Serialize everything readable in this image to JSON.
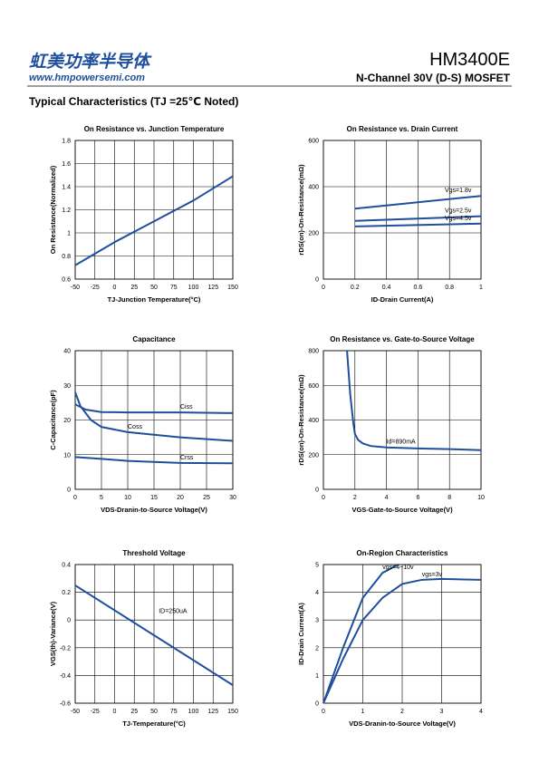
{
  "header": {
    "logo": "虹美功率半导体",
    "website": "www.hmpowersemi.com",
    "part_number": "HM3400E",
    "description": "N-Channel 30V (D-S) MOSFET"
  },
  "section_title": "Typical Characteristics (TJ =25℃ Noted)",
  "chart_data": [
    {
      "type": "line",
      "title": "On Resistance vs. Junction Temperature",
      "x_label": "TJ-Junction Temperature(°C)",
      "y_label": "On Resistance(Normalized)",
      "xlim": [
        -50,
        150
      ],
      "xticks": [
        -50,
        -25,
        0,
        25,
        50,
        75,
        100,
        125,
        150
      ],
      "ylim": [
        0.6,
        1.8
      ],
      "yticks": [
        0.6,
        0.8,
        1,
        1.2,
        1.4,
        1.6,
        1.8
      ],
      "grid": true,
      "series": [
        {
          "name": null,
          "color": "#1f4e9c",
          "x": [
            -50,
            0,
            50,
            100,
            150
          ],
          "values": [
            0.72,
            0.92,
            1.1,
            1.28,
            1.49
          ]
        }
      ]
    },
    {
      "type": "line",
      "title": "On Resistance vs. Drain Current",
      "x_label": "ID-Drain Current(A)",
      "y_label": "rDS(on)-On-Resistance(mΩ)",
      "xlim": [
        0,
        1
      ],
      "xticks": [
        0,
        0.2,
        0.4,
        0.6,
        0.8,
        1
      ],
      "ylim": [
        0,
        600
      ],
      "yticks": [
        0,
        200,
        400,
        600
      ],
      "grid": true,
      "series": [
        {
          "name": "Vgs=1.8v",
          "color": "#1f4e9c",
          "x": [
            0.2,
            1
          ],
          "values": [
            305,
            360
          ]
        },
        {
          "name": "Vgs=2.5v",
          "color": "#1f4e9c",
          "x": [
            0.2,
            1
          ],
          "values": [
            252,
            272
          ]
        },
        {
          "name": "Vgs=4.5v",
          "color": "#1f4e9c",
          "x": [
            0.2,
            1
          ],
          "values": [
            228,
            240
          ]
        }
      ]
    },
    {
      "type": "line",
      "title": "Capacitance",
      "x_label": "VDS-Dranin-to-Source Voltage(V)",
      "y_label": "C-Capacitance(pF)",
      "xlim": [
        0,
        30
      ],
      "xticks": [
        0,
        5,
        10,
        15,
        20,
        25,
        30
      ],
      "ylim": [
        0,
        40
      ],
      "yticks": [
        0,
        10,
        20,
        30,
        40
      ],
      "grid": true,
      "series": [
        {
          "name": "Ciss",
          "color": "#1f4e9c",
          "x": [
            0,
            2,
            5,
            10,
            20,
            30
          ],
          "values": [
            24.5,
            23,
            22.3,
            22.2,
            22.2,
            22
          ]
        },
        {
          "name": "Coss",
          "color": "#1f4e9c",
          "x": [
            0,
            1,
            3,
            5,
            10,
            20,
            30
          ],
          "values": [
            28,
            24,
            20,
            18,
            16.5,
            15,
            14
          ]
        },
        {
          "name": "Crss",
          "color": "#1f4e9c",
          "x": [
            0,
            5,
            10,
            20,
            30
          ],
          "values": [
            9.3,
            8.8,
            8.2,
            7.6,
            7.5
          ]
        }
      ]
    },
    {
      "type": "line",
      "title": "On Resistance vs. Gate-to-Source Voltage",
      "x_label": "VGS-Gate-to-Source Voltage(V)",
      "y_label": "rDS(on)-On-Resistance(mΩ)",
      "xlim": [
        0,
        10
      ],
      "xticks": [
        0,
        2,
        4,
        6,
        8,
        10
      ],
      "ylim": [
        0,
        800
      ],
      "yticks": [
        0,
        200,
        400,
        600,
        800
      ],
      "grid": true,
      "series": [
        {
          "name": "Id=890mA",
          "color": "#1f4e9c",
          "x": [
            1.5,
            1.7,
            1.9,
            2,
            2.2,
            2.5,
            3,
            4,
            6,
            8,
            10
          ],
          "values": [
            800,
            550,
            380,
            320,
            285,
            265,
            250,
            242,
            236,
            232,
            226
          ]
        }
      ]
    },
    {
      "type": "line",
      "title": "Threshold Voltage",
      "x_label": "TJ-Temperature(°C)",
      "y_label": "VGS(th)-Variance(V)",
      "annotation": "ID=250uA",
      "xlim": [
        -50,
        150
      ],
      "xticks": [
        -50,
        -25,
        0,
        25,
        50,
        75,
        100,
        125,
        150
      ],
      "ylim": [
        -0.6,
        0.4
      ],
      "yticks": [
        -0.6,
        -0.4,
        -0.2,
        0,
        0.2,
        0.4
      ],
      "grid": true,
      "series": [
        {
          "name": null,
          "color": "#1f4e9c",
          "x": [
            -50,
            150
          ],
          "values": [
            0.25,
            -0.47
          ]
        }
      ]
    },
    {
      "type": "line",
      "title": "On-Region Characteristics",
      "x_label": "VDS-Dranin-to-Source Voltage(V)",
      "y_label": "ID-Drain Current(A)",
      "xlim": [
        0,
        4
      ],
      "xticks": [
        0,
        1,
        2,
        3,
        4
      ],
      "ylim": [
        0,
        5
      ],
      "yticks": [
        0,
        1,
        2,
        3,
        4,
        5
      ],
      "grid": true,
      "series": [
        {
          "name": "vgs=4~10v",
          "color": "#1f4e9c",
          "x": [
            0,
            0.5,
            1,
            1.5,
            1.9
          ],
          "values": [
            0,
            2,
            3.8,
            4.7,
            5
          ]
        },
        {
          "name": "vgs=3v",
          "color": "#1f4e9c",
          "x": [
            0,
            0.5,
            1,
            1.5,
            2,
            2.5,
            3,
            4
          ],
          "values": [
            0,
            1.6,
            3,
            3.8,
            4.3,
            4.45,
            4.48,
            4.45
          ]
        }
      ]
    }
  ]
}
